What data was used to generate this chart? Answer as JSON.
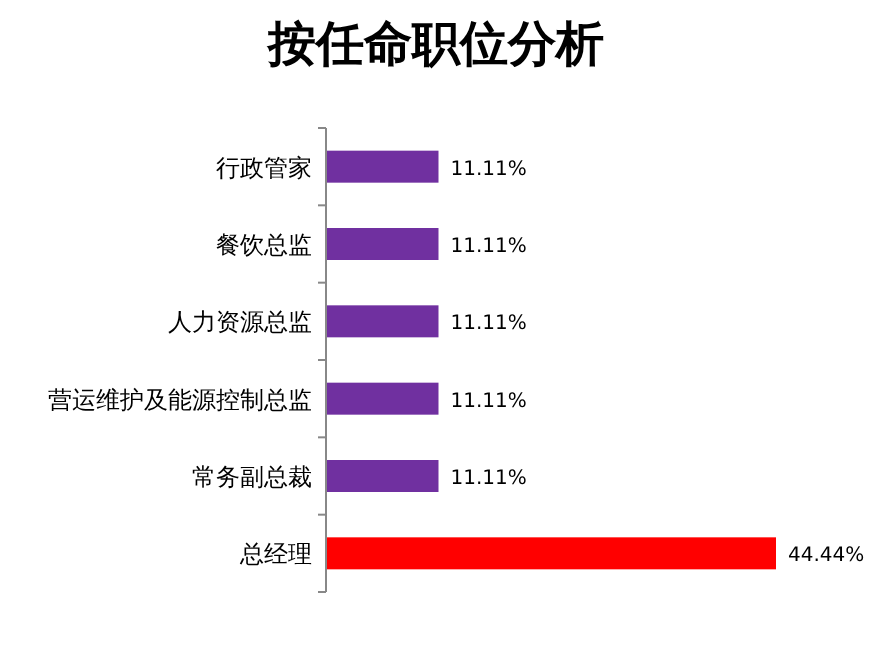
{
  "chart_data": {
    "type": "bar",
    "orientation": "horizontal",
    "title": "按任命职位分析",
    "categories": [
      "行政管家",
      "餐饮总监",
      "人力资源总监",
      "营运维护及能源控制总监",
      "常务副总裁",
      "总经理"
    ],
    "values": [
      11.11,
      11.11,
      11.11,
      11.11,
      11.11,
      44.44
    ],
    "colors": [
      "#7030a0",
      "#7030a0",
      "#7030a0",
      "#7030a0",
      "#7030a0",
      "#ff0000"
    ],
    "value_labels": [
      "11.11%",
      "11.11%",
      "11.11%",
      "11.11%",
      "11.11%",
      "44.44%"
    ]
  }
}
